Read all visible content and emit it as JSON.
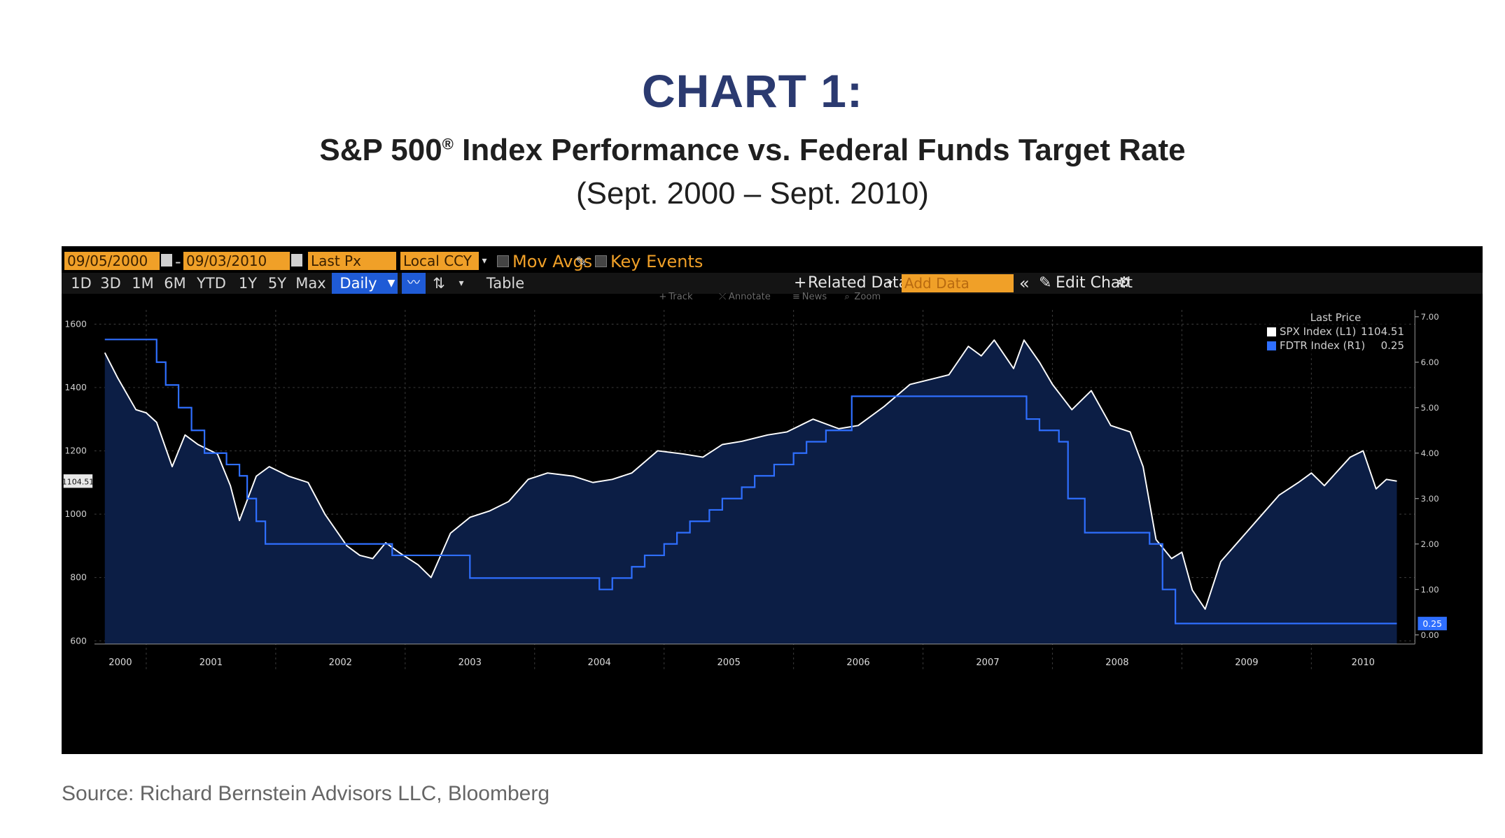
{
  "header": {
    "label": "CHART 1:",
    "title_main": "S&P 500",
    "title_mark": "®",
    "title_rest": " Index Performance vs. Federal Funds Target Rate",
    "subtitle": "(Sept. 2000 – Sept. 2010)"
  },
  "source": "Source: Richard Bernstein Advisors LLC, Bloomberg",
  "toolbar": {
    "start_date": "09/05/2000",
    "end_date": "09/03/2010",
    "price_field": "Last Px",
    "currency": "Local CCY",
    "mov_avgs": "Mov Avgs",
    "key_events": "Key Events",
    "ranges": [
      "1D",
      "3D",
      "1M",
      "6M",
      "YTD",
      "1Y",
      "5Y",
      "Max"
    ],
    "frequency": "Daily",
    "table": "Table",
    "related_data": "Related Data",
    "add_data_placeholder": "Add Data",
    "edit_chart": "Edit Chart",
    "tools": [
      "Track",
      "Annotate",
      "News",
      "Zoom"
    ]
  },
  "legend": {
    "header": "Last Price",
    "rows": [
      {
        "name": "SPX Index",
        "axis": "(L1)",
        "value": "1104.51",
        "color": "#ffffff"
      },
      {
        "name": "FDTR Index",
        "axis": "(R1)",
        "value": "0.25",
        "color": "#2f6fff"
      }
    ]
  },
  "chart_data": {
    "type": "line",
    "x_axis": {
      "tick_labels": [
        "2000",
        "2001",
        "2002",
        "2003",
        "2004",
        "2005",
        "2006",
        "2007",
        "2008",
        "2009",
        "2010"
      ],
      "range": [
        2000.6,
        2010.8
      ]
    },
    "y_left": {
      "ticks": [
        600,
        800,
        1000,
        1200,
        1400,
        1600
      ],
      "range": [
        590,
        1645
      ],
      "last_value_label": "1104.51"
    },
    "y_right": {
      "ticks": [
        "0.00",
        "1.00",
        "2.00",
        "3.00",
        "4.00",
        "5.00",
        "6.00",
        "7.00"
      ],
      "range": [
        -0.2,
        7.15
      ],
      "last_value_label": "0.25"
    },
    "grid": true,
    "legend_position": "top-right",
    "series": [
      {
        "name": "SPX Index (L1)",
        "axis": "left",
        "color": "#ffffff",
        "fill": "#0c1e45",
        "x": [
          2000.68,
          2000.78,
          2000.92,
          2001.0,
          2001.08,
          2001.2,
          2001.3,
          2001.4,
          2001.55,
          2001.65,
          2001.72,
          2001.85,
          2001.95,
          2002.0,
          2002.1,
          2002.25,
          2002.38,
          2002.55,
          2002.65,
          2002.75,
          2002.85,
          2002.95,
          2003.1,
          2003.2,
          2003.35,
          2003.5,
          2003.65,
          2003.8,
          2003.95,
          2004.1,
          2004.3,
          2004.45,
          2004.6,
          2004.75,
          2004.95,
          2005.15,
          2005.3,
          2005.45,
          2005.6,
          2005.8,
          2005.95,
          2006.15,
          2006.35,
          2006.5,
          2006.7,
          2006.9,
          2007.1,
          2007.2,
          2007.35,
          2007.45,
          2007.55,
          2007.7,
          2007.78,
          2007.9,
          2008.0,
          2008.15,
          2008.3,
          2008.45,
          2008.6,
          2008.7,
          2008.8,
          2008.92,
          2009.0,
          2009.08,
          2009.18,
          2009.3,
          2009.45,
          2009.6,
          2009.75,
          2009.9,
          2010.0,
          2010.1,
          2010.3,
          2010.4,
          2010.5,
          2010.58,
          2010.66
        ],
        "y": [
          1510,
          1430,
          1330,
          1320,
          1290,
          1150,
          1250,
          1220,
          1190,
          1090,
          980,
          1120,
          1150,
          1140,
          1120,
          1100,
          1000,
          900,
          870,
          860,
          910,
          880,
          840,
          800,
          940,
          990,
          1010,
          1040,
          1110,
          1130,
          1120,
          1100,
          1110,
          1130,
          1200,
          1190,
          1180,
          1220,
          1230,
          1250,
          1260,
          1300,
          1270,
          1280,
          1340,
          1410,
          1430,
          1440,
          1530,
          1500,
          1550,
          1460,
          1550,
          1480,
          1410,
          1330,
          1390,
          1280,
          1260,
          1150,
          920,
          860,
          880,
          760,
          700,
          850,
          920,
          990,
          1060,
          1100,
          1130,
          1090,
          1180,
          1200,
          1080,
          1110,
          1104.51
        ]
      },
      {
        "name": "FDTR Index (R1)",
        "axis": "right",
        "color": "#2f6fff",
        "x": [
          2000.68,
          2001.0,
          2001.08,
          2001.15,
          2001.25,
          2001.35,
          2001.45,
          2001.62,
          2001.72,
          2001.78,
          2001.85,
          2001.92,
          2002.9,
          2003.5,
          2004.5,
          2004.6,
          2004.75,
          2004.85,
          2005.0,
          2005.1,
          2005.2,
          2005.35,
          2005.45,
          2005.6,
          2005.7,
          2005.85,
          2006.0,
          2006.1,
          2006.25,
          2006.45,
          2007.7,
          2007.8,
          2007.9,
          2008.05,
          2008.12,
          2008.25,
          2008.75,
          2008.85,
          2008.95,
          2010.66
        ],
        "y": [
          6.5,
          6.5,
          6.0,
          5.5,
          5.0,
          4.5,
          4.0,
          3.75,
          3.5,
          3.0,
          2.5,
          2.0,
          1.75,
          1.25,
          1.0,
          1.25,
          1.5,
          1.75,
          2.0,
          2.25,
          2.5,
          2.75,
          3.0,
          3.25,
          3.5,
          3.75,
          4.0,
          4.25,
          4.5,
          5.25,
          5.25,
          4.75,
          4.5,
          4.25,
          3.0,
          2.25,
          2.0,
          1.0,
          0.25,
          0.25
        ]
      }
    ]
  }
}
